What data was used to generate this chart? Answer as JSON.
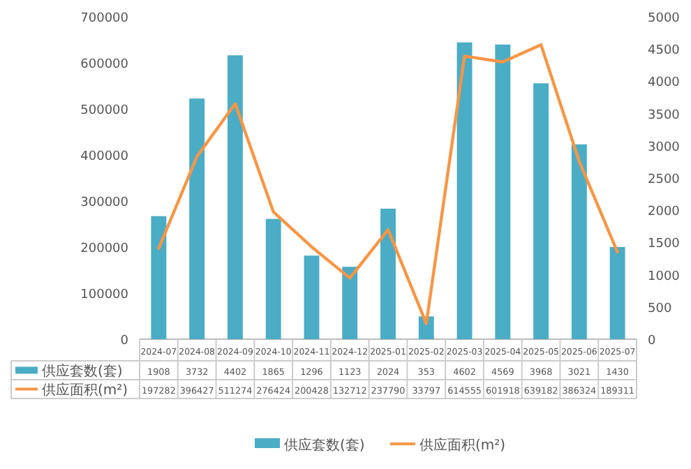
{
  "chart_data": {
    "type": "bar",
    "categories": [
      "2024-07",
      "2024-08",
      "2024-09",
      "2024-10",
      "2024-11",
      "2024-12",
      "2025-01",
      "2025-02",
      "2025-03",
      "2025-04",
      "2025-05",
      "2025-06",
      "2025-07"
    ],
    "series": [
      {
        "name": "供应套数(套)",
        "axis": "y2",
        "color": "#4bacc6",
        "values": [
          1908,
          3732,
          4402,
          1865,
          1296,
          1123,
          2024,
          353,
          4602,
          4569,
          3968,
          3021,
          1430
        ]
      },
      {
        "name": "供应面积(m²)",
        "type": "line",
        "axis": "y",
        "color": "#f79646",
        "values": [
          197282,
          396427,
          511274,
          276424,
          200428,
          132712,
          237790,
          33797,
          614555,
          601918,
          639182,
          386324,
          189311
        ]
      }
    ],
    "ylim": [
      0,
      700000
    ],
    "yticks": [
      0,
      100000,
      200000,
      300000,
      400000,
      500000,
      600000,
      700000
    ],
    "y2lim": [
      0,
      5000
    ],
    "y2ticks": [
      0,
      500,
      1000,
      1500,
      2000,
      2500,
      3000,
      3500,
      4000,
      4500,
      5000
    ],
    "data_labels": true,
    "legend": "bottom",
    "grid": false
  }
}
